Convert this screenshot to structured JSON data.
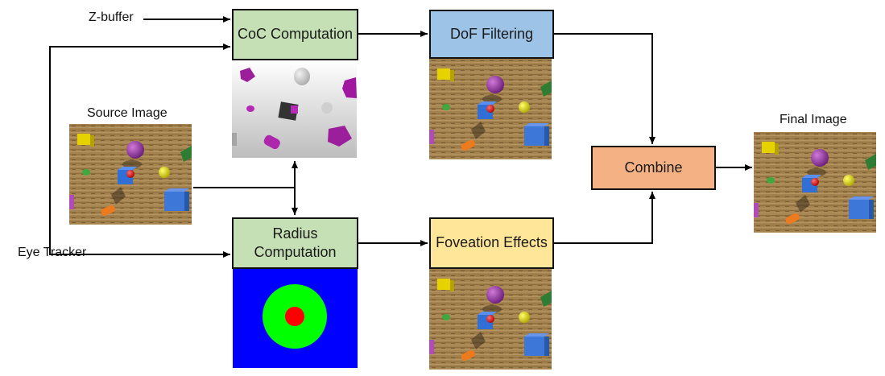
{
  "inputs": {
    "zbuffer": "Z-buffer",
    "eye_tracker": "Eye Tracker",
    "source_image": "Source Image",
    "final_image": "Final Image"
  },
  "boxes": {
    "coc": "CoC Computation",
    "dof": "DoF Filtering",
    "radius": "Radius Computation",
    "foveation": "Foveation Effects",
    "combine": "Combine"
  },
  "colors": {
    "coc": "#c5e0b4",
    "dof": "#9dc3e6",
    "radius": "#c5e0b4",
    "foveation": "#ffe699",
    "combine": "#f4b183",
    "radius_map_bg": "#0000ff",
    "radius_map_ring": "#00ff00",
    "radius_map_center": "#ff0000"
  },
  "icons": {
    "scene": "3d-scene-thumbnail",
    "coc_map": "coc-depth-map",
    "radius_map": "foveation-radius-map"
  }
}
